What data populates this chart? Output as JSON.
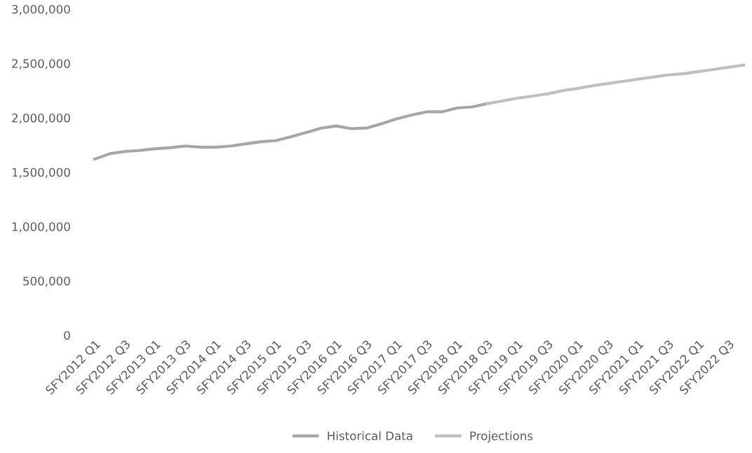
{
  "chart_data": {
    "type": "line",
    "categories": [
      "SFY2012 Q1",
      null,
      "SFY2012 Q3",
      null,
      "SFY2013 Q1",
      null,
      "SFY2013 Q3",
      null,
      "SFY2014 Q1",
      null,
      "SFY2014 Q3",
      null,
      "SFY2015 Q1",
      null,
      "SFY2015 Q3",
      null,
      "SFY2016 Q1",
      null,
      "SFY2016 Q3",
      null,
      "SFY2017 Q1",
      null,
      "SFY2017 Q3",
      null,
      "SFY2018 Q1",
      null,
      "SFY2018 Q3",
      null,
      "SFY2019 Q1",
      null,
      "SFY2019 Q3",
      null,
      "SFY2020 Q1",
      null,
      "SFY2020 Q3",
      null,
      "SFY2021 Q1",
      null,
      "SFY2021 Q3",
      null,
      "SFY2022 Q1",
      null,
      "SFY2022 Q3",
      null
    ],
    "series": [
      {
        "name": "Historical Data",
        "color": "#a6a6a6",
        "values": [
          1620000,
          1670000,
          1690000,
          1700000,
          1715000,
          1725000,
          1740000,
          1730000,
          1730000,
          1740000,
          1760000,
          1780000,
          1790000,
          1825000,
          1865000,
          1905000,
          1925000,
          1900000,
          1905000,
          1945000,
          1990000,
          2025000,
          2055000,
          2055000,
          2090000,
          2100000,
          2130000,
          null,
          null,
          null,
          null,
          null,
          null,
          null,
          null,
          null,
          null,
          null,
          null,
          null,
          null,
          null,
          null,
          null
        ]
      },
      {
        "name": "Projections",
        "color": "#bfbfbf",
        "values": [
          null,
          null,
          null,
          null,
          null,
          null,
          null,
          null,
          null,
          null,
          null,
          null,
          null,
          null,
          null,
          null,
          null,
          null,
          null,
          null,
          null,
          null,
          null,
          null,
          null,
          null,
          2130000,
          2155000,
          2180000,
          2200000,
          2220000,
          2250000,
          2270000,
          2295000,
          2315000,
          2335000,
          2355000,
          2375000,
          2395000,
          2405000,
          2425000,
          2445000,
          2465000,
          2485000
        ]
      }
    ],
    "ylim": [
      0,
      3000000
    ],
    "yticks": [
      {
        "value": 0,
        "label": "0"
      },
      {
        "value": 500000,
        "label": "500,000"
      },
      {
        "value": 1000000,
        "label": "1,000,000"
      },
      {
        "value": 1500000,
        "label": "1,500,000"
      },
      {
        "value": 2000000,
        "label": "2,000,000"
      },
      {
        "value": 2500000,
        "label": "2,500,000"
      },
      {
        "value": 3000000,
        "label": "3,000,000"
      }
    ],
    "grid": false,
    "legend": "bottom",
    "marker": "none",
    "line_style": "solid"
  }
}
